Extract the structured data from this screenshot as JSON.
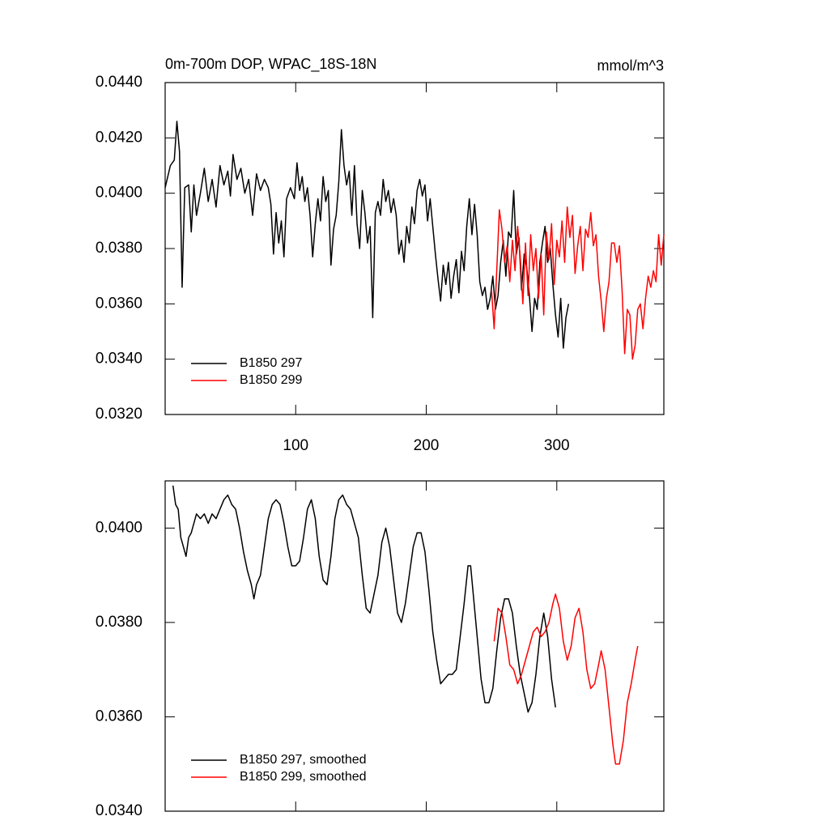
{
  "chart_data": [
    {
      "type": "line",
      "title": "0m-700m DOP, WPAC_18S-18N",
      "units": "mmol/m^3",
      "xlim": [
        0,
        382
      ],
      "xticks": [
        100,
        200,
        300
      ],
      "show_xtick_labels": true,
      "ylim": [
        0.032,
        0.044
      ],
      "yticks": [
        {
          "value": 0.032,
          "label": "0.0320"
        },
        {
          "value": 0.034,
          "label": "0.0340"
        },
        {
          "value": 0.036,
          "label": "0.0360"
        },
        {
          "value": 0.038,
          "label": "0.0380"
        },
        {
          "value": 0.04,
          "label": "0.0400"
        },
        {
          "value": 0.042,
          "label": "0.0420"
        },
        {
          "value": 0.044,
          "label": "0.0440"
        }
      ],
      "legend": "lower left",
      "series": [
        {
          "name": "B1850 297",
          "color": "#000000",
          "x": [
            0,
            4,
            7,
            9,
            11,
            13,
            15,
            18,
            20,
            22,
            24,
            27,
            30,
            33,
            36,
            39,
            42,
            45,
            48,
            50,
            52,
            55,
            58,
            61,
            64,
            67,
            70,
            73,
            76,
            79,
            81,
            83,
            85,
            87,
            89,
            91,
            93,
            96,
            99,
            101,
            103,
            105,
            107,
            109,
            111,
            113,
            115,
            117,
            119,
            121,
            123,
            125,
            127,
            129,
            131,
            133,
            135,
            137,
            139,
            141,
            143,
            145,
            147,
            149,
            151,
            153,
            155,
            157,
            159,
            161,
            163,
            165,
            167,
            169,
            171,
            173,
            175,
            177,
            179,
            181,
            183,
            185,
            187,
            189,
            191,
            193,
            195,
            197,
            199,
            201,
            203,
            205,
            207,
            209,
            211,
            213,
            215,
            217,
            219,
            221,
            223,
            225,
            227,
            229,
            231,
            233,
            235,
            237,
            239,
            241,
            243,
            245,
            247,
            249,
            251,
            253,
            255,
            257,
            259,
            261,
            263,
            265,
            267,
            269,
            271,
            273,
            275,
            277,
            279,
            281,
            283,
            285,
            287,
            289,
            291,
            293,
            295,
            297,
            299,
            301,
            303,
            305,
            307,
            309
          ],
          "values": [
            0.0402,
            0.041,
            0.0412,
            0.0426,
            0.0415,
            0.0366,
            0.0402,
            0.0403,
            0.0386,
            0.0403,
            0.0392,
            0.04,
            0.0409,
            0.0397,
            0.0405,
            0.0395,
            0.041,
            0.0403,
            0.0408,
            0.0399,
            0.0414,
            0.0405,
            0.0409,
            0.04,
            0.0405,
            0.0392,
            0.0407,
            0.0401,
            0.0405,
            0.0402,
            0.0396,
            0.0378,
            0.0393,
            0.0382,
            0.039,
            0.0377,
            0.0398,
            0.0402,
            0.0398,
            0.0411,
            0.0401,
            0.0406,
            0.0397,
            0.0402,
            0.0392,
            0.0377,
            0.0389,
            0.0398,
            0.039,
            0.0406,
            0.0397,
            0.0401,
            0.0374,
            0.0387,
            0.0392,
            0.0404,
            0.0423,
            0.041,
            0.0403,
            0.0408,
            0.0392,
            0.041,
            0.0389,
            0.038,
            0.0401,
            0.0393,
            0.0382,
            0.0388,
            0.0355,
            0.0393,
            0.0397,
            0.0392,
            0.0405,
            0.0397,
            0.0401,
            0.0393,
            0.0398,
            0.0392,
            0.0378,
            0.0383,
            0.0375,
            0.0388,
            0.0382,
            0.0395,
            0.0389,
            0.0401,
            0.0405,
            0.0399,
            0.0403,
            0.039,
            0.0398,
            0.0388,
            0.0378,
            0.0369,
            0.0361,
            0.0374,
            0.0367,
            0.0375,
            0.0362,
            0.037,
            0.0376,
            0.0364,
            0.0379,
            0.0372,
            0.0388,
            0.0398,
            0.0385,
            0.0396,
            0.0385,
            0.0368,
            0.0363,
            0.0366,
            0.0358,
            0.0362,
            0.037,
            0.0358,
            0.0363,
            0.0375,
            0.0383,
            0.037,
            0.0386,
            0.0384,
            0.0401,
            0.0378,
            0.0384,
            0.0365,
            0.0378,
            0.0373,
            0.0363,
            0.035,
            0.0362,
            0.0358,
            0.0375,
            0.0382,
            0.0388,
            0.0375,
            0.038,
            0.0367,
            0.0356,
            0.0348,
            0.0362,
            0.0344,
            0.0355,
            0.036
          ]
        },
        {
          "name": "B1850 299",
          "color": "#ff0000",
          "x": [
            250,
            252,
            254,
            256,
            258,
            260,
            262,
            264,
            266,
            268,
            270,
            272,
            274,
            276,
            278,
            280,
            282,
            284,
            286,
            288,
            290,
            292,
            294,
            296,
            298,
            300,
            302,
            304,
            306,
            308,
            310,
            312,
            314,
            316,
            318,
            320,
            322,
            324,
            326,
            328,
            330,
            332,
            334,
            336,
            338,
            340,
            342,
            344,
            346,
            348,
            350,
            352,
            354,
            356,
            358,
            360,
            362,
            364,
            366,
            368,
            370,
            372,
            374,
            376,
            378,
            380,
            382
          ],
          "values": [
            0.0365,
            0.0351,
            0.0372,
            0.0394,
            0.0387,
            0.0375,
            0.0381,
            0.0368,
            0.0383,
            0.0372,
            0.0388,
            0.0377,
            0.036,
            0.0382,
            0.0363,
            0.0385,
            0.0372,
            0.038,
            0.0362,
            0.0378,
            0.0356,
            0.0386,
            0.0376,
            0.0389,
            0.0367,
            0.0383,
            0.0377,
            0.039,
            0.0375,
            0.0395,
            0.0384,
            0.0392,
            0.0371,
            0.0381,
            0.0388,
            0.0372,
            0.0387,
            0.0384,
            0.0393,
            0.0381,
            0.0385,
            0.037,
            0.0361,
            0.035,
            0.0362,
            0.0368,
            0.0382,
            0.0382,
            0.0375,
            0.0381,
            0.0365,
            0.0342,
            0.0358,
            0.0356,
            0.034,
            0.0345,
            0.0358,
            0.036,
            0.0351,
            0.0362,
            0.037,
            0.0366,
            0.0372,
            0.0368,
            0.0385,
            0.0374,
            0.0385
          ]
        }
      ]
    },
    {
      "type": "line",
      "xlim": [
        0,
        382
      ],
      "xticks": [
        100,
        200,
        300
      ],
      "show_xtick_labels": false,
      "ylim": [
        0.034,
        0.041
      ],
      "yticks": [
        {
          "value": 0.034,
          "label": "0.0340"
        },
        {
          "value": 0.036,
          "label": "0.0360"
        },
        {
          "value": 0.038,
          "label": "0.0380"
        },
        {
          "value": 0.04,
          "label": "0.0400"
        }
      ],
      "legend": "lower left",
      "series": [
        {
          "name": "B1850 297, smoothed",
          "color": "#000000",
          "x": [
            6,
            8,
            10,
            12,
            14,
            16,
            18,
            20,
            22,
            24,
            27,
            30,
            33,
            36,
            39,
            42,
            45,
            48,
            51,
            54,
            57,
            60,
            63,
            66,
            68,
            70,
            73,
            76,
            79,
            82,
            85,
            88,
            91,
            94,
            97,
            100,
            103,
            106,
            109,
            112,
            115,
            118,
            121,
            124,
            127,
            130,
            133,
            136,
            139,
            142,
            145,
            148,
            151,
            154,
            157,
            160,
            163,
            166,
            169,
            172,
            175,
            178,
            181,
            184,
            187,
            190,
            193,
            196,
            199,
            202,
            205,
            208,
            211,
            214,
            217,
            220,
            223,
            226,
            229,
            232,
            234,
            236,
            239,
            242,
            245,
            248,
            251,
            254,
            257,
            260,
            263,
            266,
            269,
            272,
            275,
            278,
            281,
            284,
            287,
            290,
            293,
            296,
            299
          ],
          "values": [
            0.0409,
            0.0405,
            0.0404,
            0.0398,
            0.0396,
            0.0394,
            0.0398,
            0.0399,
            0.0401,
            0.0403,
            0.0402,
            0.0403,
            0.0401,
            0.0403,
            0.0402,
            0.0404,
            0.0406,
            0.0407,
            0.0405,
            0.0404,
            0.04,
            0.0395,
            0.0391,
            0.0388,
            0.0385,
            0.0388,
            0.039,
            0.0396,
            0.0402,
            0.0405,
            0.0406,
            0.0405,
            0.0401,
            0.0396,
            0.0392,
            0.0392,
            0.0393,
            0.0398,
            0.0404,
            0.0406,
            0.0402,
            0.0394,
            0.0389,
            0.0388,
            0.0394,
            0.0402,
            0.0406,
            0.0407,
            0.0405,
            0.0404,
            0.0401,
            0.0398,
            0.039,
            0.0383,
            0.0382,
            0.0386,
            0.039,
            0.0397,
            0.04,
            0.0396,
            0.0389,
            0.0382,
            0.038,
            0.0384,
            0.039,
            0.0396,
            0.0399,
            0.0399,
            0.0395,
            0.0387,
            0.0378,
            0.0372,
            0.0367,
            0.0368,
            0.0369,
            0.0369,
            0.037,
            0.0377,
            0.0384,
            0.0392,
            0.0392,
            0.0386,
            0.0377,
            0.0368,
            0.0363,
            0.0363,
            0.0366,
            0.0374,
            0.0381,
            0.0385,
            0.0385,
            0.0382,
            0.0375,
            0.0369,
            0.0365,
            0.0361,
            0.0363,
            0.0369,
            0.0377,
            0.0382,
            0.0377,
            0.0368,
            0.0362
          ]
        },
        {
          "name": "B1850 299, smoothed",
          "color": "#ff0000",
          "x": [
            252,
            255,
            258,
            261,
            264,
            267,
            270,
            273,
            276,
            279,
            282,
            285,
            288,
            291,
            294,
            297,
            299,
            302,
            305,
            308,
            311,
            314,
            317,
            320,
            323,
            326,
            329,
            332,
            334,
            337,
            340,
            343,
            345,
            348,
            351,
            354,
            357,
            360,
            362
          ],
          "values": [
            0.0376,
            0.0383,
            0.0382,
            0.0377,
            0.0371,
            0.037,
            0.0367,
            0.0369,
            0.0372,
            0.0375,
            0.0378,
            0.0379,
            0.0377,
            0.0378,
            0.038,
            0.0384,
            0.0386,
            0.0383,
            0.0376,
            0.0372,
            0.0375,
            0.0381,
            0.0383,
            0.0378,
            0.037,
            0.0366,
            0.0367,
            0.0371,
            0.0374,
            0.037,
            0.0362,
            0.0354,
            0.035,
            0.035,
            0.0355,
            0.0363,
            0.0367,
            0.0372,
            0.0375
          ]
        }
      ]
    }
  ]
}
